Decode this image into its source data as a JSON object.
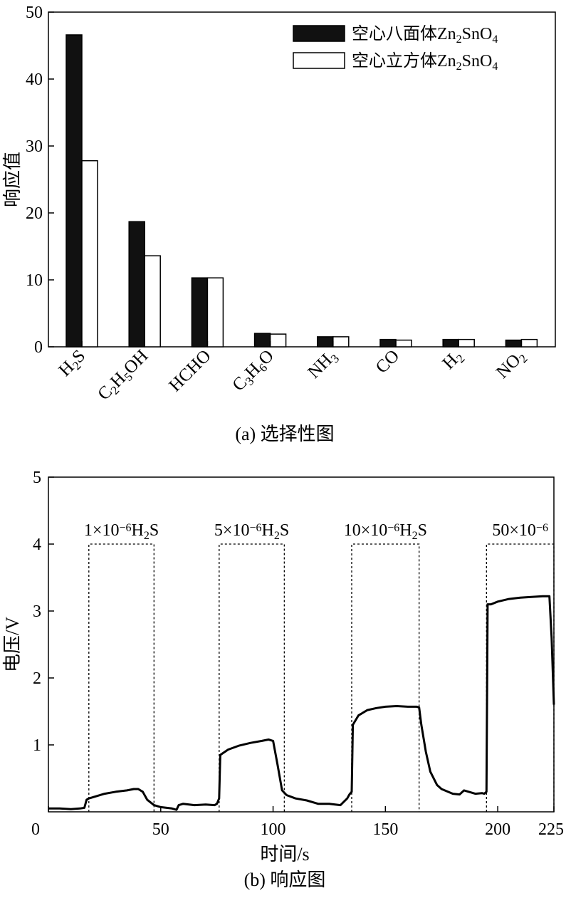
{
  "chart_data": [
    {
      "type": "bar",
      "caption": "(a) 选择性图",
      "ylabel": "响应值",
      "ylim": [
        0,
        50
      ],
      "yticks": [
        "0",
        "10",
        "20",
        "30",
        "40",
        "50"
      ],
      "categories": [
        {
          "base": "H",
          "sub1": "2",
          "base2": "S",
          "sub2": "",
          "base3": "",
          "sub3": "",
          "base4": ""
        },
        {
          "base": "C",
          "sub1": "2",
          "base2": "H",
          "sub2": "5",
          "base3": "OH",
          "sub3": "",
          "base4": ""
        },
        {
          "base": "HCHO",
          "sub1": "",
          "base2": "",
          "sub2": "",
          "base3": "",
          "sub3": "",
          "base4": ""
        },
        {
          "base": "C",
          "sub1": "3",
          "base2": "H",
          "sub2": "6",
          "base3": "O",
          "sub3": "",
          "base4": ""
        },
        {
          "base": "NH",
          "sub1": "3",
          "base2": "",
          "sub2": "",
          "base3": "",
          "sub3": "",
          "base4": ""
        },
        {
          "base": "CO",
          "sub1": "",
          "base2": "",
          "sub2": "",
          "base3": "",
          "sub3": "",
          "base4": ""
        },
        {
          "base": "H",
          "sub1": "2",
          "base2": "",
          "sub2": "",
          "base3": "",
          "sub3": "",
          "base4": ""
        },
        {
          "base": "NO",
          "sub1": "2",
          "base2": "",
          "sub2": "",
          "base3": "",
          "sub3": "",
          "base4": ""
        }
      ],
      "series": [
        {
          "name_prefix": "空心八面体Zn",
          "name_sub1": "2",
          "name_mid": "SnO",
          "name_sub2": "4",
          "fill": "#111111",
          "values": [
            46.6,
            18.7,
            10.3,
            2.0,
            1.5,
            1.1,
            1.1,
            1.0
          ]
        },
        {
          "name_prefix": "空心立方体Zn",
          "name_sub1": "2",
          "name_mid": "SnO",
          "name_sub2": "4",
          "fill": "#ffffff",
          "values": [
            27.8,
            13.6,
            10.3,
            1.9,
            1.5,
            1.0,
            1.1,
            1.1
          ]
        }
      ],
      "legend_position": "top-right"
    },
    {
      "type": "line",
      "caption": "(b) 响应图",
      "xlabel": "时间/s",
      "ylabel": "电压/V",
      "xlim": [
        0,
        225
      ],
      "ylim": [
        0,
        5
      ],
      "xticks": [
        "0",
        "50",
        "100",
        "150",
        "200",
        "225"
      ],
      "xtick_values": [
        0,
        50,
        100,
        150,
        200,
        225
      ],
      "yticks": [
        "1",
        "2",
        "3",
        "4",
        "5"
      ],
      "ytick_values": [
        1,
        2,
        3,
        4,
        5
      ],
      "annotations": [
        {
          "pre": "1×10",
          "sup": "−6",
          "post": "H",
          "sub": "2",
          "post2": "S",
          "x0": 18,
          "x1": 47
        },
        {
          "pre": "5×10",
          "sup": "−6",
          "post": "H",
          "sub": "2",
          "post2": "S",
          "x0": 76,
          "x1": 105
        },
        {
          "pre": "10×10",
          "sup": "−6",
          "post": "H",
          "sub": "2",
          "post2": "S",
          "x0": 135,
          "x1": 165
        },
        {
          "pre": "50×10",
          "sup": "−6",
          "post": "",
          "sub": "",
          "post2": "",
          "x0": 195,
          "x1": 225
        }
      ],
      "box_top": 4.0,
      "series": [
        {
          "x": [
            0,
            5,
            10,
            14,
            16,
            17,
            18,
            20,
            25,
            30,
            35,
            38,
            40,
            42,
            44,
            47,
            50,
            55,
            57,
            58,
            60,
            65,
            70,
            74,
            75,
            76,
            76.5,
            80,
            85,
            90,
            95,
            98,
            100,
            102,
            104,
            106,
            110,
            115,
            120,
            125,
            130,
            133,
            134,
            135,
            135.5,
            138,
            142,
            146,
            150,
            155,
            160,
            164,
            165,
            166,
            168,
            170,
            173,
            175,
            180,
            183,
            185,
            188,
            190,
            193,
            194,
            195,
            195.5,
            197,
            200,
            205,
            210,
            215,
            220,
            223,
            224,
            225
          ],
          "y": [
            0.05,
            0.05,
            0.04,
            0.05,
            0.06,
            0.18,
            0.2,
            0.22,
            0.27,
            0.3,
            0.32,
            0.34,
            0.34,
            0.3,
            0.18,
            0.1,
            0.07,
            0.05,
            0.03,
            0.1,
            0.12,
            0.1,
            0.11,
            0.1,
            0.12,
            0.2,
            0.85,
            0.93,
            0.99,
            1.03,
            1.06,
            1.08,
            1.06,
            0.7,
            0.32,
            0.25,
            0.2,
            0.17,
            0.12,
            0.12,
            0.1,
            0.2,
            0.26,
            0.3,
            1.3,
            1.44,
            1.52,
            1.55,
            1.57,
            1.58,
            1.57,
            1.57,
            1.56,
            1.3,
            0.9,
            0.6,
            0.4,
            0.34,
            0.27,
            0.26,
            0.32,
            0.29,
            0.27,
            0.28,
            0.27,
            0.3,
            3.1,
            3.1,
            3.14,
            3.18,
            3.2,
            3.21,
            3.22,
            3.22,
            2.6,
            1.6
          ]
        }
      ]
    }
  ]
}
